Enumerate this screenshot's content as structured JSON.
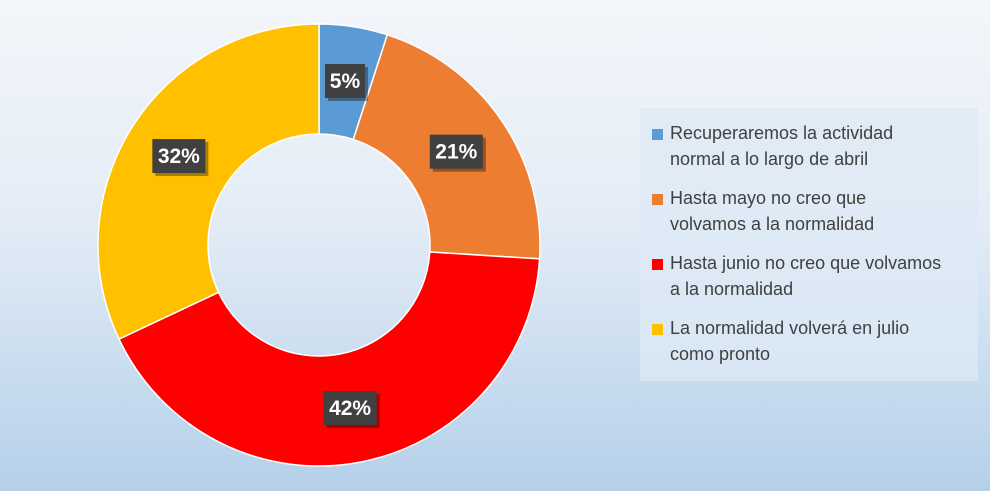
{
  "chart_data": {
    "type": "pie",
    "variant": "donut",
    "title": "",
    "categories": [
      "Recuperaremos la actividad normal a lo largo de abril",
      "Hasta mayo no creo que volvamos a la normalidad",
      "Hasta junio no creo que volvamos a la normalidad",
      "La normalidad volverá en julio como pronto"
    ],
    "values": [
      5,
      21,
      42,
      32
    ],
    "unit": "%",
    "data_labels": [
      "5%",
      "21%",
      "42%",
      "32%"
    ],
    "colors": [
      "#5b9bd5",
      "#ed7d31",
      "#ff0000",
      "#ffc000"
    ],
    "legend": {
      "placement": "right",
      "items": [
        {
          "line1": "Recuperaremos la actividad",
          "line2": "normal a lo largo de abril",
          "color": "#5b9bd5"
        },
        {
          "line1": "Hasta mayo no creo que",
          "line2": "volvamos a la normalidad",
          "color": "#ed7d31"
        },
        {
          "line1": "Hasta junio no creo que volvamos",
          "line2": "a la normalidad",
          "color": "#ff0000"
        },
        {
          "line1": "La normalidad volverá en julio",
          "line2": "como pronto",
          "color": "#ffc000"
        }
      ]
    }
  }
}
